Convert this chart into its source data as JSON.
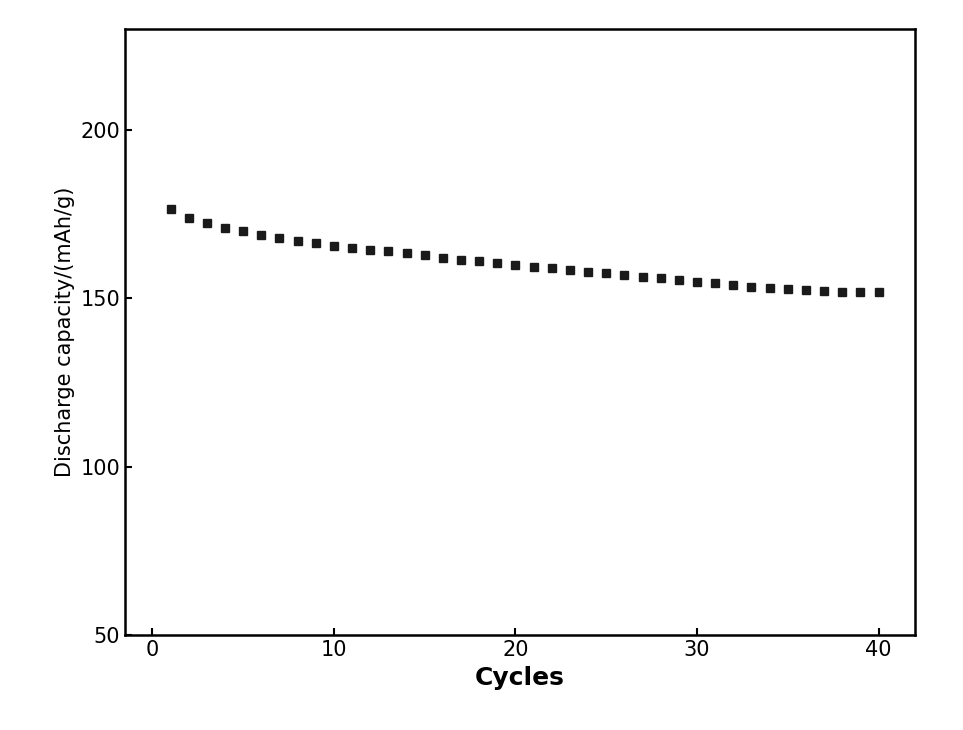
{
  "x": [
    1,
    2,
    3,
    4,
    5,
    6,
    7,
    8,
    9,
    10,
    11,
    12,
    13,
    14,
    15,
    16,
    17,
    18,
    19,
    20,
    21,
    22,
    23,
    24,
    25,
    26,
    27,
    28,
    29,
    30,
    31,
    32,
    33,
    34,
    35,
    36,
    37,
    38,
    39,
    40
  ],
  "y": [
    176.5,
    174.0,
    172.5,
    171.0,
    170.0,
    169.0,
    168.0,
    167.0,
    166.5,
    165.5,
    165.0,
    164.5,
    164.0,
    163.5,
    163.0,
    162.0,
    161.5,
    161.0,
    160.5,
    160.0,
    159.5,
    159.0,
    158.5,
    158.0,
    157.5,
    157.0,
    156.5,
    156.0,
    155.5,
    155.0,
    154.5,
    154.0,
    153.5,
    153.0,
    152.8,
    152.5,
    152.3,
    152.0,
    152.0,
    151.8
  ],
  "xlabel": "Cycles",
  "ylabel": "Discharge capacity/(mAh/g)",
  "xlim": [
    -1.5,
    42
  ],
  "ylim": [
    50,
    230
  ],
  "yticks": [
    50,
    100,
    150,
    200
  ],
  "xticks": [
    0,
    10,
    20,
    30,
    40
  ],
  "marker": "s",
  "marker_color": "#1a1a1a",
  "marker_size": 6,
  "background_color": "#ffffff",
  "xlabel_fontsize": 18,
  "ylabel_fontsize": 15,
  "tick_fontsize": 15
}
